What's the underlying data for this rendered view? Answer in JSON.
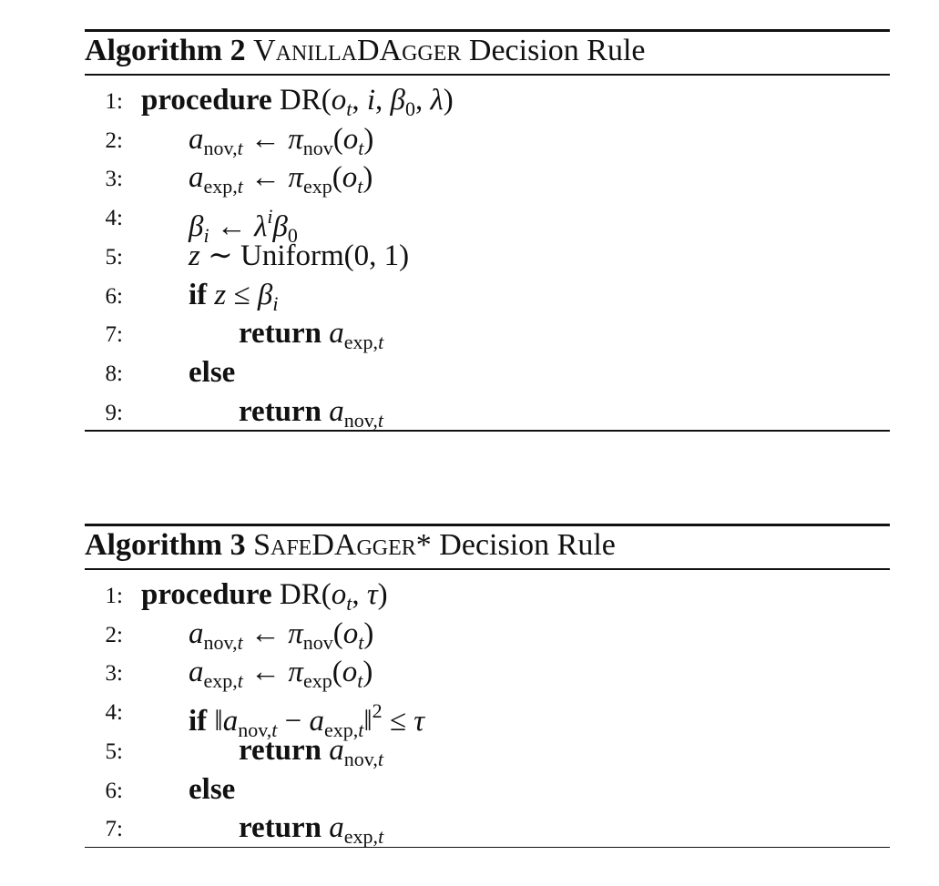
{
  "algorithms": [
    {
      "label": "Algorithm 2",
      "name": "VanillaDAgger",
      "suffix": "Decision Rule",
      "lines": [
        {
          "number": "1:",
          "indent": 0,
          "parts": [
            [
              "procedure",
              "b"
            ],
            [
              " DR(",
              "r"
            ],
            [
              "o",
              "i"
            ],
            [
              "t",
              "subi"
            ],
            [
              ", ",
              "r"
            ],
            [
              "i",
              "i"
            ],
            [
              ", ",
              "r"
            ],
            [
              "β",
              "i"
            ],
            [
              "0",
              "sub"
            ],
            [
              ", ",
              "r"
            ],
            [
              "λ",
              "i"
            ],
            [
              ")",
              "r"
            ]
          ]
        },
        {
          "number": "2:",
          "indent": 1,
          "parts": [
            [
              "a",
              "i"
            ],
            [
              "nov,",
              "sub"
            ],
            [
              "t",
              "subi"
            ],
            [
              " ← ",
              "r"
            ],
            [
              "π",
              "i"
            ],
            [
              "nov",
              "sub"
            ],
            [
              "(",
              "r"
            ],
            [
              "o",
              "i"
            ],
            [
              "t",
              "subi"
            ],
            [
              ")",
              "r"
            ]
          ]
        },
        {
          "number": "3:",
          "indent": 1,
          "parts": [
            [
              "a",
              "i"
            ],
            [
              "exp,",
              "sub"
            ],
            [
              "t",
              "subi"
            ],
            [
              " ← ",
              "r"
            ],
            [
              "π",
              "i"
            ],
            [
              "exp",
              "sub"
            ],
            [
              "(",
              "r"
            ],
            [
              "o",
              "i"
            ],
            [
              "t",
              "subi"
            ],
            [
              ")",
              "r"
            ]
          ]
        },
        {
          "number": "4:",
          "indent": 1,
          "parts": [
            [
              "β",
              "i"
            ],
            [
              "i",
              "subi"
            ],
            [
              " ← ",
              "r"
            ],
            [
              "λ",
              "i"
            ],
            [
              "i",
              "supi"
            ],
            [
              "β",
              "i"
            ],
            [
              "0",
              "sub"
            ]
          ]
        },
        {
          "number": "5:",
          "indent": 1,
          "parts": [
            [
              "z",
              "i"
            ],
            [
              " ∼ Uniform(0, 1)",
              "r"
            ]
          ]
        },
        {
          "number": "6:",
          "indent": 1,
          "parts": [
            [
              "if",
              "b"
            ],
            [
              " ",
              "r"
            ],
            [
              "z",
              "i"
            ],
            [
              " ≤ ",
              "r"
            ],
            [
              "β",
              "i"
            ],
            [
              "i",
              "subi"
            ]
          ]
        },
        {
          "number": "7:",
          "indent": 2,
          "parts": [
            [
              "return",
              "b"
            ],
            [
              " ",
              "r"
            ],
            [
              "a",
              "i"
            ],
            [
              "exp,",
              "sub"
            ],
            [
              "t",
              "subi"
            ]
          ]
        },
        {
          "number": "8:",
          "indent": 1,
          "parts": [
            [
              "else",
              "b"
            ]
          ]
        },
        {
          "number": "9:",
          "indent": 2,
          "parts": [
            [
              "return",
              "b"
            ],
            [
              " ",
              "r"
            ],
            [
              "a",
              "i"
            ],
            [
              "nov,",
              "sub"
            ],
            [
              "t",
              "subi"
            ]
          ]
        }
      ]
    },
    {
      "label": "Algorithm 3",
      "name": "SafeDAgger*",
      "suffix": "Decision Rule",
      "lines": [
        {
          "number": "1:",
          "indent": 0,
          "parts": [
            [
              "procedure",
              "b"
            ],
            [
              " DR(",
              "r"
            ],
            [
              "o",
              "i"
            ],
            [
              "t",
              "subi"
            ],
            [
              ", ",
              "r"
            ],
            [
              "τ",
              "i"
            ],
            [
              ")",
              "r"
            ]
          ]
        },
        {
          "number": "2:",
          "indent": 1,
          "parts": [
            [
              "a",
              "i"
            ],
            [
              "nov,",
              "sub"
            ],
            [
              "t",
              "subi"
            ],
            [
              " ← ",
              "r"
            ],
            [
              "π",
              "i"
            ],
            [
              "nov",
              "sub"
            ],
            [
              "(",
              "r"
            ],
            [
              "o",
              "i"
            ],
            [
              "t",
              "subi"
            ],
            [
              ")",
              "r"
            ]
          ]
        },
        {
          "number": "3:",
          "indent": 1,
          "parts": [
            [
              "a",
              "i"
            ],
            [
              "exp,",
              "sub"
            ],
            [
              "t",
              "subi"
            ],
            [
              " ← ",
              "r"
            ],
            [
              "π",
              "i"
            ],
            [
              "exp",
              "sub"
            ],
            [
              "(",
              "r"
            ],
            [
              "o",
              "i"
            ],
            [
              "t",
              "subi"
            ],
            [
              ")",
              "r"
            ]
          ]
        },
        {
          "number": "4:",
          "indent": 1,
          "parts": [
            [
              "if",
              "b"
            ],
            [
              " ‖",
              "r"
            ],
            [
              "a",
              "i"
            ],
            [
              "nov,",
              "sub"
            ],
            [
              "t",
              "subi"
            ],
            [
              " − ",
              "r"
            ],
            [
              "a",
              "i"
            ],
            [
              "exp,",
              "sub"
            ],
            [
              "t",
              "subi"
            ],
            [
              "‖",
              "r"
            ],
            [
              "2",
              "sup"
            ],
            [
              " ≤ ",
              "r"
            ],
            [
              "τ",
              "i"
            ]
          ]
        },
        {
          "number": "5:",
          "indent": 2,
          "parts": [
            [
              "return",
              "b"
            ],
            [
              " ",
              "r"
            ],
            [
              "a",
              "i"
            ],
            [
              "nov,",
              "sub"
            ],
            [
              "t",
              "subi"
            ]
          ]
        },
        {
          "number": "6:",
          "indent": 1,
          "parts": [
            [
              "else",
              "b"
            ]
          ]
        },
        {
          "number": "7:",
          "indent": 2,
          "parts": [
            [
              "return",
              "b"
            ],
            [
              " ",
              "r"
            ],
            [
              "a",
              "i"
            ],
            [
              "exp,",
              "sub"
            ],
            [
              "t",
              "subi"
            ]
          ]
        }
      ]
    }
  ]
}
